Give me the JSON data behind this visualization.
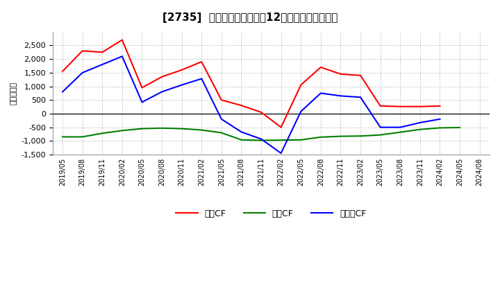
{
  "title": "[2735] キャッシュフローの12か月移動合計の推移",
  "title_prefix": "[2735]",
  "title_suffix": "キャッシュフローの12か月移動合計の推移",
  "ylabel": "（百万円）",
  "background_color": "#ffffff",
  "plot_bg_color": "#ffffff",
  "grid_color": "#aaaaaa",
  "ylim": [
    -1500,
    3000
  ],
  "yticks": [
    -1500,
    -1000,
    -500,
    0,
    500,
    1000,
    1500,
    2000,
    2500
  ],
  "x_labels": [
    "2019/05",
    "2019/08",
    "2019/11",
    "2020/02",
    "2020/05",
    "2020/08",
    "2020/11",
    "2021/02",
    "2021/05",
    "2021/08",
    "2021/11",
    "2022/02",
    "2022/05",
    "2022/08",
    "2022/11",
    "2023/02",
    "2023/05",
    "2023/08",
    "2023/11",
    "2024/02",
    "2024/05",
    "2024/08"
  ],
  "operating_cf": [
    1550,
    2300,
    2250,
    2700,
    950,
    1350,
    1600,
    1900,
    500,
    300,
    50,
    -500,
    1050,
    1700,
    1450,
    1400,
    280,
    260,
    260,
    280,
    null,
    null
  ],
  "investing_cf": [
    -850,
    -850,
    -720,
    -620,
    -550,
    -530,
    -550,
    -600,
    -700,
    -960,
    -980,
    -970,
    -960,
    -860,
    -830,
    -820,
    -780,
    -680,
    -580,
    -520,
    -510,
    null
  ],
  "free_cf": [
    800,
    1500,
    1800,
    2100,
    420,
    800,
    1050,
    1280,
    -200,
    -670,
    -930,
    -1450,
    80,
    750,
    650,
    600,
    -500,
    -500,
    -330,
    -200,
    null,
    null
  ],
  "operating_color": "#ff0000",
  "investing_color": "#008000",
  "free_color": "#0000ff",
  "line_width": 1.5,
  "legend_labels": [
    "営業CF",
    "投資CF",
    "フリーCF"
  ]
}
